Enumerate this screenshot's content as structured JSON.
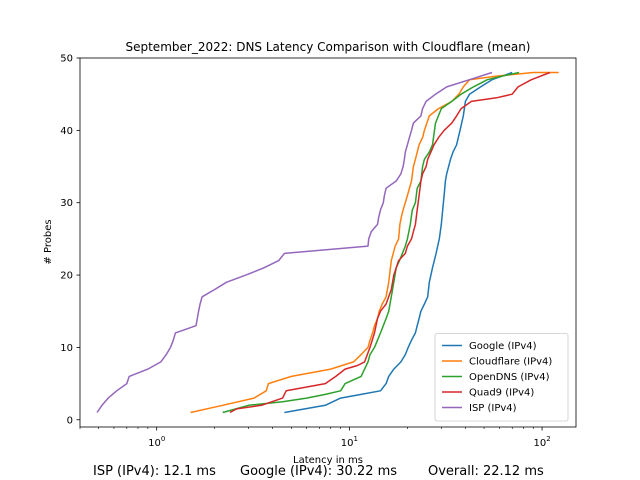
{
  "chart_data": {
    "type": "line",
    "title": "September_2022: DNS Latency Comparison with Cloudflare (mean)",
    "xlabel": "Latency in ms",
    "ylabel": "# Probes",
    "xscale": "log",
    "xlim": [
      0.4,
      150
    ],
    "ylim": [
      -1,
      50
    ],
    "xticks": [
      {
        "value": 1,
        "label": "10^0"
      },
      {
        "value": 10,
        "label": "10^1"
      },
      {
        "value": 100,
        "label": "10^2"
      }
    ],
    "yticks": [
      0,
      10,
      20,
      30,
      40,
      50
    ],
    "grid": false,
    "legend_position": "lower-right",
    "series": [
      {
        "name": "Google (IPv4)",
        "color": "#1f77b4",
        "points": [
          [
            4.6,
            1
          ],
          [
            7.5,
            2
          ],
          [
            9,
            3
          ],
          [
            11.5,
            3.5
          ],
          [
            14.5,
            4
          ],
          [
            15.5,
            5
          ],
          [
            16,
            6
          ],
          [
            17,
            7
          ],
          [
            18.5,
            8
          ],
          [
            19.5,
            9
          ],
          [
            20.2,
            10
          ],
          [
            21,
            11
          ],
          [
            22,
            12
          ],
          [
            22.5,
            13
          ],
          [
            23,
            14
          ],
          [
            23.5,
            15
          ],
          [
            24.5,
            16
          ],
          [
            25.5,
            17
          ],
          [
            26,
            19
          ],
          [
            27,
            21
          ],
          [
            28.2,
            23
          ],
          [
            29.3,
            25
          ],
          [
            30,
            27
          ],
          [
            30.5,
            29
          ],
          [
            31,
            31
          ],
          [
            31.5,
            33
          ],
          [
            32,
            34
          ],
          [
            33.5,
            36
          ],
          [
            34.5,
            37
          ],
          [
            36,
            38
          ],
          [
            37.5,
            40
          ],
          [
            39,
            42
          ],
          [
            40,
            44
          ],
          [
            42,
            45
          ],
          [
            48,
            46
          ],
          [
            55,
            47
          ],
          [
            70,
            48
          ]
        ]
      },
      {
        "name": "Cloudflare (IPv4)",
        "color": "#ff7f0e",
        "points": [
          [
            1.5,
            1
          ],
          [
            2.2,
            2
          ],
          [
            3.2,
            3
          ],
          [
            3.7,
            4
          ],
          [
            3.8,
            5
          ],
          [
            5,
            6
          ],
          [
            8,
            7
          ],
          [
            10.5,
            8
          ],
          [
            11.5,
            9
          ],
          [
            12.5,
            10
          ],
          [
            12.8,
            11
          ],
          [
            13.2,
            12
          ],
          [
            13.5,
            13
          ],
          [
            14,
            14
          ],
          [
            14.3,
            15
          ],
          [
            14.8,
            16
          ],
          [
            15.5,
            17
          ],
          [
            16,
            19
          ],
          [
            16.5,
            22
          ],
          [
            17.3,
            24
          ],
          [
            18,
            25
          ],
          [
            18.3,
            27
          ],
          [
            18.6,
            28
          ],
          [
            19,
            29
          ],
          [
            19.5,
            30
          ],
          [
            20,
            31
          ],
          [
            21,
            33
          ],
          [
            21.5,
            35
          ],
          [
            22,
            36
          ],
          [
            23,
            38
          ],
          [
            24,
            39
          ],
          [
            24.5,
            40
          ],
          [
            26,
            42
          ],
          [
            29,
            43
          ],
          [
            34,
            44
          ],
          [
            37,
            45
          ],
          [
            39,
            46
          ],
          [
            42,
            47
          ],
          [
            58,
            47.5
          ],
          [
            90,
            48
          ],
          [
            122,
            48
          ]
        ]
      },
      {
        "name": "OpenDNS (IPv4)",
        "color": "#2ca02c",
        "points": [
          [
            2.2,
            1
          ],
          [
            3,
            2
          ],
          [
            4.5,
            2.5
          ],
          [
            6,
            3
          ],
          [
            7.5,
            3.5
          ],
          [
            9,
            4
          ],
          [
            9.5,
            5
          ],
          [
            11.5,
            6
          ],
          [
            12,
            7
          ],
          [
            12.5,
            8
          ],
          [
            12.8,
            9
          ],
          [
            13.5,
            10
          ],
          [
            14,
            11
          ],
          [
            14.5,
            12
          ],
          [
            15,
            13
          ],
          [
            15.5,
            14
          ],
          [
            16,
            15
          ],
          [
            16.5,
            17
          ],
          [
            17,
            19
          ],
          [
            17.5,
            21
          ],
          [
            18.2,
            22
          ],
          [
            19.5,
            24
          ],
          [
            20,
            25
          ],
          [
            20.7,
            27
          ],
          [
            21.2,
            29
          ],
          [
            22,
            30
          ],
          [
            22.5,
            32
          ],
          [
            23.5,
            33
          ],
          [
            24,
            35
          ],
          [
            24.5,
            36
          ],
          [
            26,
            37
          ],
          [
            27,
            38
          ],
          [
            28,
            41
          ],
          [
            30,
            43
          ],
          [
            34,
            44
          ],
          [
            38,
            45
          ],
          [
            44,
            46
          ],
          [
            52,
            47
          ],
          [
            62,
            47.5
          ],
          [
            76,
            48
          ]
        ]
      },
      {
        "name": "Quad9 (IPv4)",
        "color": "#d62728",
        "points": [
          [
            2.4,
            1
          ],
          [
            2.6,
            1.5
          ],
          [
            3.5,
            2
          ],
          [
            4.5,
            3
          ],
          [
            4.7,
            4
          ],
          [
            7.5,
            5
          ],
          [
            8.5,
            6
          ],
          [
            9.5,
            7
          ],
          [
            11,
            7.5
          ],
          [
            12,
            8
          ],
          [
            12.8,
            10
          ],
          [
            13.5,
            12
          ],
          [
            14,
            14
          ],
          [
            14.5,
            15
          ],
          [
            15.5,
            16
          ],
          [
            16.5,
            18
          ],
          [
            17,
            20
          ],
          [
            18,
            22
          ],
          [
            19.5,
            23
          ],
          [
            20,
            24
          ],
          [
            21,
            25
          ],
          [
            21.5,
            26
          ],
          [
            22,
            27
          ],
          [
            22.5,
            29
          ],
          [
            23,
            31
          ],
          [
            23.5,
            33
          ],
          [
            24,
            34
          ],
          [
            25,
            35
          ],
          [
            25.5,
            36
          ],
          [
            26.5,
            37
          ],
          [
            27.5,
            38
          ],
          [
            29,
            39
          ],
          [
            31,
            40
          ],
          [
            34,
            41
          ],
          [
            36,
            42
          ],
          [
            38,
            43
          ],
          [
            43,
            44
          ],
          [
            58,
            44.5
          ],
          [
            70,
            45
          ],
          [
            75,
            46
          ],
          [
            88,
            47
          ],
          [
            110,
            48
          ]
        ]
      },
      {
        "name": "ISP (IPv4)",
        "color": "#9467bd",
        "points": [
          [
            0.49,
            1
          ],
          [
            0.52,
            2
          ],
          [
            0.56,
            3
          ],
          [
            0.62,
            4
          ],
          [
            0.7,
            5
          ],
          [
            0.72,
            6
          ],
          [
            0.9,
            7
          ],
          [
            1.05,
            8
          ],
          [
            1.12,
            9
          ],
          [
            1.18,
            10
          ],
          [
            1.22,
            11
          ],
          [
            1.25,
            12
          ],
          [
            1.6,
            13
          ],
          [
            1.65,
            15
          ],
          [
            1.68,
            16
          ],
          [
            1.72,
            17
          ],
          [
            2.0,
            18
          ],
          [
            2.3,
            19
          ],
          [
            2.9,
            20
          ],
          [
            3.6,
            21
          ],
          [
            4.3,
            22
          ],
          [
            4.6,
            23
          ],
          [
            12.5,
            24
          ],
          [
            12.6,
            25
          ],
          [
            13,
            26
          ],
          [
            14,
            27
          ],
          [
            14.2,
            28
          ],
          [
            14.5,
            29
          ],
          [
            15,
            30
          ],
          [
            15.2,
            31
          ],
          [
            15.5,
            32
          ],
          [
            17.5,
            33
          ],
          [
            18.5,
            34
          ],
          [
            19,
            35
          ],
          [
            19.3,
            36
          ],
          [
            19.5,
            37
          ],
          [
            20,
            38
          ],
          [
            20.5,
            39
          ],
          [
            21,
            40
          ],
          [
            21.5,
            41
          ],
          [
            23.5,
            42
          ],
          [
            24,
            43
          ],
          [
            25,
            44
          ],
          [
            28,
            45
          ],
          [
            32,
            46
          ],
          [
            42,
            47
          ],
          [
            55,
            48
          ]
        ]
      }
    ]
  },
  "footer": {
    "isp": "ISP (IPv4): 12.1 ms",
    "google": "Google (IPv4): 30.22 ms",
    "overall": "Overall: 22.12 ms"
  }
}
